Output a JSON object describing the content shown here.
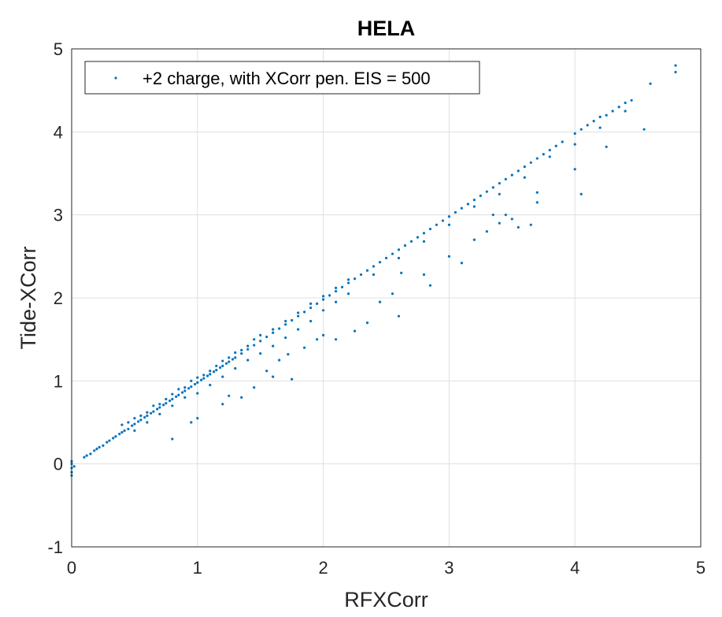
{
  "chart_data": {
    "type": "scatter",
    "title": "HELA",
    "xlabel": "RFXCorr",
    "ylabel": "Tide-XCorr",
    "xlim": [
      0,
      5
    ],
    "ylim": [
      -1,
      5
    ],
    "xticks": [
      0,
      1,
      2,
      3,
      4,
      5
    ],
    "yticks": [
      -1,
      0,
      1,
      2,
      3,
      4,
      5
    ],
    "xtick_labels": [
      "0",
      "1",
      "2",
      "3",
      "4",
      "5"
    ],
    "ytick_labels": [
      "-1",
      "0",
      "1",
      "2",
      "3",
      "4",
      "5"
    ],
    "grid": true,
    "legend_position": "top-left",
    "marker_color": "#0072BD",
    "series": [
      {
        "name": "+2 charge, with XCorr pen. EIS = 500",
        "points": [
          [
            0.0,
            -0.14
          ],
          [
            0.0,
            -0.1
          ],
          [
            0.0,
            -0.05
          ],
          [
            0.0,
            0.0
          ],
          [
            0.02,
            -0.03
          ],
          [
            0.0,
            0.03
          ],
          [
            0.1,
            0.08
          ],
          [
            0.12,
            0.1
          ],
          [
            0.15,
            0.12
          ],
          [
            0.18,
            0.16
          ],
          [
            0.2,
            0.18
          ],
          [
            0.22,
            0.2
          ],
          [
            0.25,
            0.22
          ],
          [
            0.28,
            0.26
          ],
          [
            0.3,
            0.28
          ],
          [
            0.33,
            0.31
          ],
          [
            0.35,
            0.33
          ],
          [
            0.38,
            0.36
          ],
          [
            0.4,
            0.38
          ],
          [
            0.42,
            0.4
          ],
          [
            0.45,
            0.42
          ],
          [
            0.48,
            0.46
          ],
          [
            0.5,
            0.48
          ],
          [
            0.53,
            0.51
          ],
          [
            0.55,
            0.53
          ],
          [
            0.58,
            0.56
          ],
          [
            0.6,
            0.58
          ],
          [
            0.63,
            0.61
          ],
          [
            0.65,
            0.63
          ],
          [
            0.68,
            0.66
          ],
          [
            0.7,
            0.68
          ],
          [
            0.73,
            0.71
          ],
          [
            0.75,
            0.73
          ],
          [
            0.78,
            0.76
          ],
          [
            0.8,
            0.78
          ],
          [
            0.83,
            0.81
          ],
          [
            0.85,
            0.83
          ],
          [
            0.88,
            0.86
          ],
          [
            0.9,
            0.88
          ],
          [
            0.93,
            0.91
          ],
          [
            0.95,
            0.93
          ],
          [
            0.98,
            0.96
          ],
          [
            1.0,
            0.98
          ],
          [
            1.03,
            1.01
          ],
          [
            1.05,
            1.03
          ],
          [
            1.08,
            1.06
          ],
          [
            1.1,
            1.08
          ],
          [
            1.13,
            1.11
          ],
          [
            1.15,
            1.13
          ],
          [
            1.18,
            1.16
          ],
          [
            1.2,
            1.18
          ],
          [
            1.23,
            1.21
          ],
          [
            1.25,
            1.23
          ],
          [
            1.28,
            1.26
          ],
          [
            1.3,
            1.28
          ],
          [
            1.35,
            1.33
          ],
          [
            1.4,
            1.38
          ],
          [
            1.45,
            1.43
          ],
          [
            1.5,
            1.48
          ],
          [
            1.55,
            1.53
          ],
          [
            1.6,
            1.58
          ],
          [
            1.65,
            1.63
          ],
          [
            1.7,
            1.68
          ],
          [
            1.75,
            1.73
          ],
          [
            1.8,
            1.78
          ],
          [
            1.85,
            1.83
          ],
          [
            1.9,
            1.88
          ],
          [
            1.95,
            1.93
          ],
          [
            2.0,
            1.98
          ],
          [
            2.05,
            2.03
          ],
          [
            2.1,
            2.08
          ],
          [
            2.15,
            2.13
          ],
          [
            2.2,
            2.18
          ],
          [
            2.25,
            2.23
          ],
          [
            2.3,
            2.28
          ],
          [
            2.35,
            2.33
          ],
          [
            2.4,
            2.38
          ],
          [
            2.45,
            2.43
          ],
          [
            2.5,
            2.48
          ],
          [
            2.55,
            2.53
          ],
          [
            2.6,
            2.58
          ],
          [
            2.65,
            2.63
          ],
          [
            2.7,
            2.68
          ],
          [
            2.75,
            2.73
          ],
          [
            2.8,
            2.78
          ],
          [
            2.85,
            2.83
          ],
          [
            2.9,
            2.88
          ],
          [
            2.95,
            2.93
          ],
          [
            3.0,
            2.98
          ],
          [
            3.05,
            3.03
          ],
          [
            3.1,
            3.08
          ],
          [
            3.15,
            3.13
          ],
          [
            3.2,
            3.18
          ],
          [
            3.25,
            3.23
          ],
          [
            3.3,
            3.28
          ],
          [
            3.35,
            3.33
          ],
          [
            3.4,
            3.38
          ],
          [
            3.45,
            3.43
          ],
          [
            3.5,
            3.48
          ],
          [
            3.55,
            3.53
          ],
          [
            3.6,
            3.58
          ],
          [
            3.65,
            3.63
          ],
          [
            3.7,
            3.68
          ],
          [
            3.75,
            3.73
          ],
          [
            3.8,
            3.78
          ],
          [
            3.85,
            3.83
          ],
          [
            3.9,
            3.88
          ],
          [
            4.0,
            3.98
          ],
          [
            4.05,
            4.03
          ],
          [
            4.1,
            4.08
          ],
          [
            4.15,
            4.13
          ],
          [
            4.2,
            4.18
          ],
          [
            4.25,
            4.2
          ],
          [
            4.3,
            4.25
          ],
          [
            4.35,
            4.3
          ],
          [
            4.4,
            4.35
          ],
          [
            4.45,
            4.38
          ],
          [
            4.6,
            4.58
          ],
          [
            4.8,
            4.72
          ],
          [
            4.8,
            4.8
          ],
          [
            0.4,
            0.47
          ],
          [
            0.45,
            0.5
          ],
          [
            0.5,
            0.55
          ],
          [
            0.55,
            0.58
          ],
          [
            0.6,
            0.62
          ],
          [
            0.65,
            0.7
          ],
          [
            0.7,
            0.72
          ],
          [
            0.75,
            0.78
          ],
          [
            0.8,
            0.84
          ],
          [
            0.85,
            0.9
          ],
          [
            0.9,
            0.92
          ],
          [
            0.95,
            1.0
          ],
          [
            1.0,
            1.04
          ],
          [
            1.05,
            1.07
          ],
          [
            1.1,
            1.12
          ],
          [
            1.15,
            1.18
          ],
          [
            1.2,
            1.24
          ],
          [
            1.25,
            1.28
          ],
          [
            1.3,
            1.34
          ],
          [
            1.35,
            1.37
          ],
          [
            1.4,
            1.42
          ],
          [
            1.45,
            1.5
          ],
          [
            1.5,
            1.55
          ],
          [
            1.6,
            1.62
          ],
          [
            1.7,
            1.72
          ],
          [
            1.8,
            1.82
          ],
          [
            1.9,
            1.93
          ],
          [
            2.0,
            2.02
          ],
          [
            2.1,
            2.12
          ],
          [
            2.2,
            2.22
          ],
          [
            0.5,
            0.4
          ],
          [
            0.6,
            0.5
          ],
          [
            0.7,
            0.6
          ],
          [
            0.8,
            0.7
          ],
          [
            0.9,
            0.8
          ],
          [
            1.0,
            0.85
          ],
          [
            1.1,
            0.95
          ],
          [
            1.2,
            1.05
          ],
          [
            1.3,
            1.15
          ],
          [
            1.4,
            1.25
          ],
          [
            1.5,
            1.33
          ],
          [
            1.6,
            1.42
          ],
          [
            1.7,
            1.52
          ],
          [
            1.8,
            1.62
          ],
          [
            1.9,
            1.72
          ],
          [
            2.0,
            1.85
          ],
          [
            2.1,
            1.95
          ],
          [
            2.2,
            2.05
          ],
          [
            2.4,
            2.28
          ],
          [
            2.6,
            2.48
          ],
          [
            2.8,
            2.68
          ],
          [
            3.0,
            2.88
          ],
          [
            3.2,
            3.1
          ],
          [
            3.4,
            3.25
          ],
          [
            3.6,
            3.45
          ],
          [
            3.8,
            3.7
          ],
          [
            4.0,
            3.85
          ],
          [
            4.2,
            4.05
          ],
          [
            4.4,
            4.25
          ],
          [
            0.8,
            0.3
          ],
          [
            0.95,
            0.5
          ],
          [
            1.0,
            0.55
          ],
          [
            1.2,
            0.72
          ],
          [
            1.25,
            0.82
          ],
          [
            1.35,
            0.8
          ],
          [
            1.45,
            0.92
          ],
          [
            1.55,
            1.12
          ],
          [
            1.6,
            1.05
          ],
          [
            1.75,
            1.02
          ],
          [
            1.65,
            1.25
          ],
          [
            1.72,
            1.32
          ],
          [
            1.85,
            1.4
          ],
          [
            1.95,
            1.5
          ],
          [
            2.0,
            1.55
          ],
          [
            2.1,
            1.5
          ],
          [
            2.25,
            1.6
          ],
          [
            2.35,
            1.7
          ],
          [
            2.45,
            1.95
          ],
          [
            2.55,
            2.05
          ],
          [
            2.6,
            1.78
          ],
          [
            2.62,
            2.3
          ],
          [
            2.8,
            2.28
          ],
          [
            2.85,
            2.15
          ],
          [
            3.0,
            2.5
          ],
          [
            3.1,
            2.42
          ],
          [
            3.2,
            2.7
          ],
          [
            3.3,
            2.8
          ],
          [
            3.35,
            3.0
          ],
          [
            3.4,
            2.9
          ],
          [
            3.45,
            3.0
          ],
          [
            3.5,
            2.95
          ],
          [
            3.55,
            2.85
          ],
          [
            3.65,
            2.88
          ],
          [
            3.7,
            3.15
          ],
          [
            3.7,
            3.27
          ],
          [
            4.0,
            3.55
          ],
          [
            4.05,
            3.25
          ],
          [
            4.25,
            3.82
          ],
          [
            4.55,
            4.03
          ]
        ]
      }
    ]
  }
}
